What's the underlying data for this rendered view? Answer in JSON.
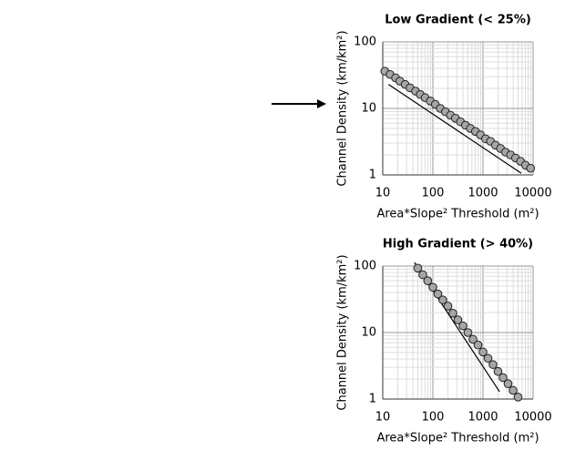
{
  "chart_data": [
    {
      "type": "scatter",
      "title": "Low Gradient (< 25%)",
      "x_label": "Area*Slope² Threshold (m²)",
      "y_label": "Channel Density (km/km²)",
      "log_x": true,
      "log_y": true,
      "grid": true,
      "color": "#a6a6a6",
      "xlim": [
        10,
        10000
      ],
      "xticks": [
        10,
        100,
        1000,
        10000
      ],
      "ylim": [
        1,
        100
      ],
      "yticks": [
        1,
        10,
        100
      ],
      "x": [
        11,
        14,
        18,
        22,
        28,
        35,
        45,
        56,
        70,
        89,
        112,
        141,
        178,
        224,
        282,
        355,
        447,
        562,
        708,
        891,
        1122,
        1413,
        1778,
        2239,
        2818,
        3548,
        4467,
        5623,
        7079,
        8913
      ],
      "values": [
        36.3,
        32.4,
        28.8,
        25.7,
        22.9,
        20.4,
        18.2,
        16.2,
        14.5,
        12.9,
        11.5,
        10,
        8.9,
        7.9,
        7.1,
        6.3,
        5.6,
        5.0,
        4.5,
        4.0,
        3.5,
        3.2,
        2.8,
        2.5,
        2.2,
        2.0,
        1.8,
        1.6,
        1.4,
        1.26
      ],
      "fit_line": {
        "x": [
          13,
          5800
        ],
        "values": [
          23,
          1.06
        ]
      }
    },
    {
      "type": "scatter",
      "title": "High Gradient (> 40%)",
      "x_label": "Area*Slope² Threshold (m²)",
      "y_label": "Channel Density (km/km²)",
      "log_x": true,
      "log_y": true,
      "grid": true,
      "color": "#a6a6a6",
      "xlim": [
        10,
        10000
      ],
      "xticks": [
        10,
        100,
        1000,
        10000
      ],
      "ylim": [
        1,
        100
      ],
      "yticks": [
        1,
        10,
        100
      ],
      "x": [
        50,
        63,
        79,
        100,
        126,
        158,
        200,
        251,
        316,
        398,
        501,
        631,
        794,
        1000,
        1259,
        1585,
        1995,
        2512,
        3162,
        3981,
        5012
      ],
      "values": [
        93,
        74,
        60,
        48,
        38,
        31,
        25,
        19.5,
        15.5,
        12.6,
        10,
        7.9,
        6.5,
        5.1,
        4.1,
        3.3,
        2.6,
        2.1,
        1.7,
        1.35,
        1.07
      ],
      "fit_line": {
        "x": [
          43,
          2140
        ],
        "values": [
          113,
          1.29
        ]
      }
    }
  ]
}
